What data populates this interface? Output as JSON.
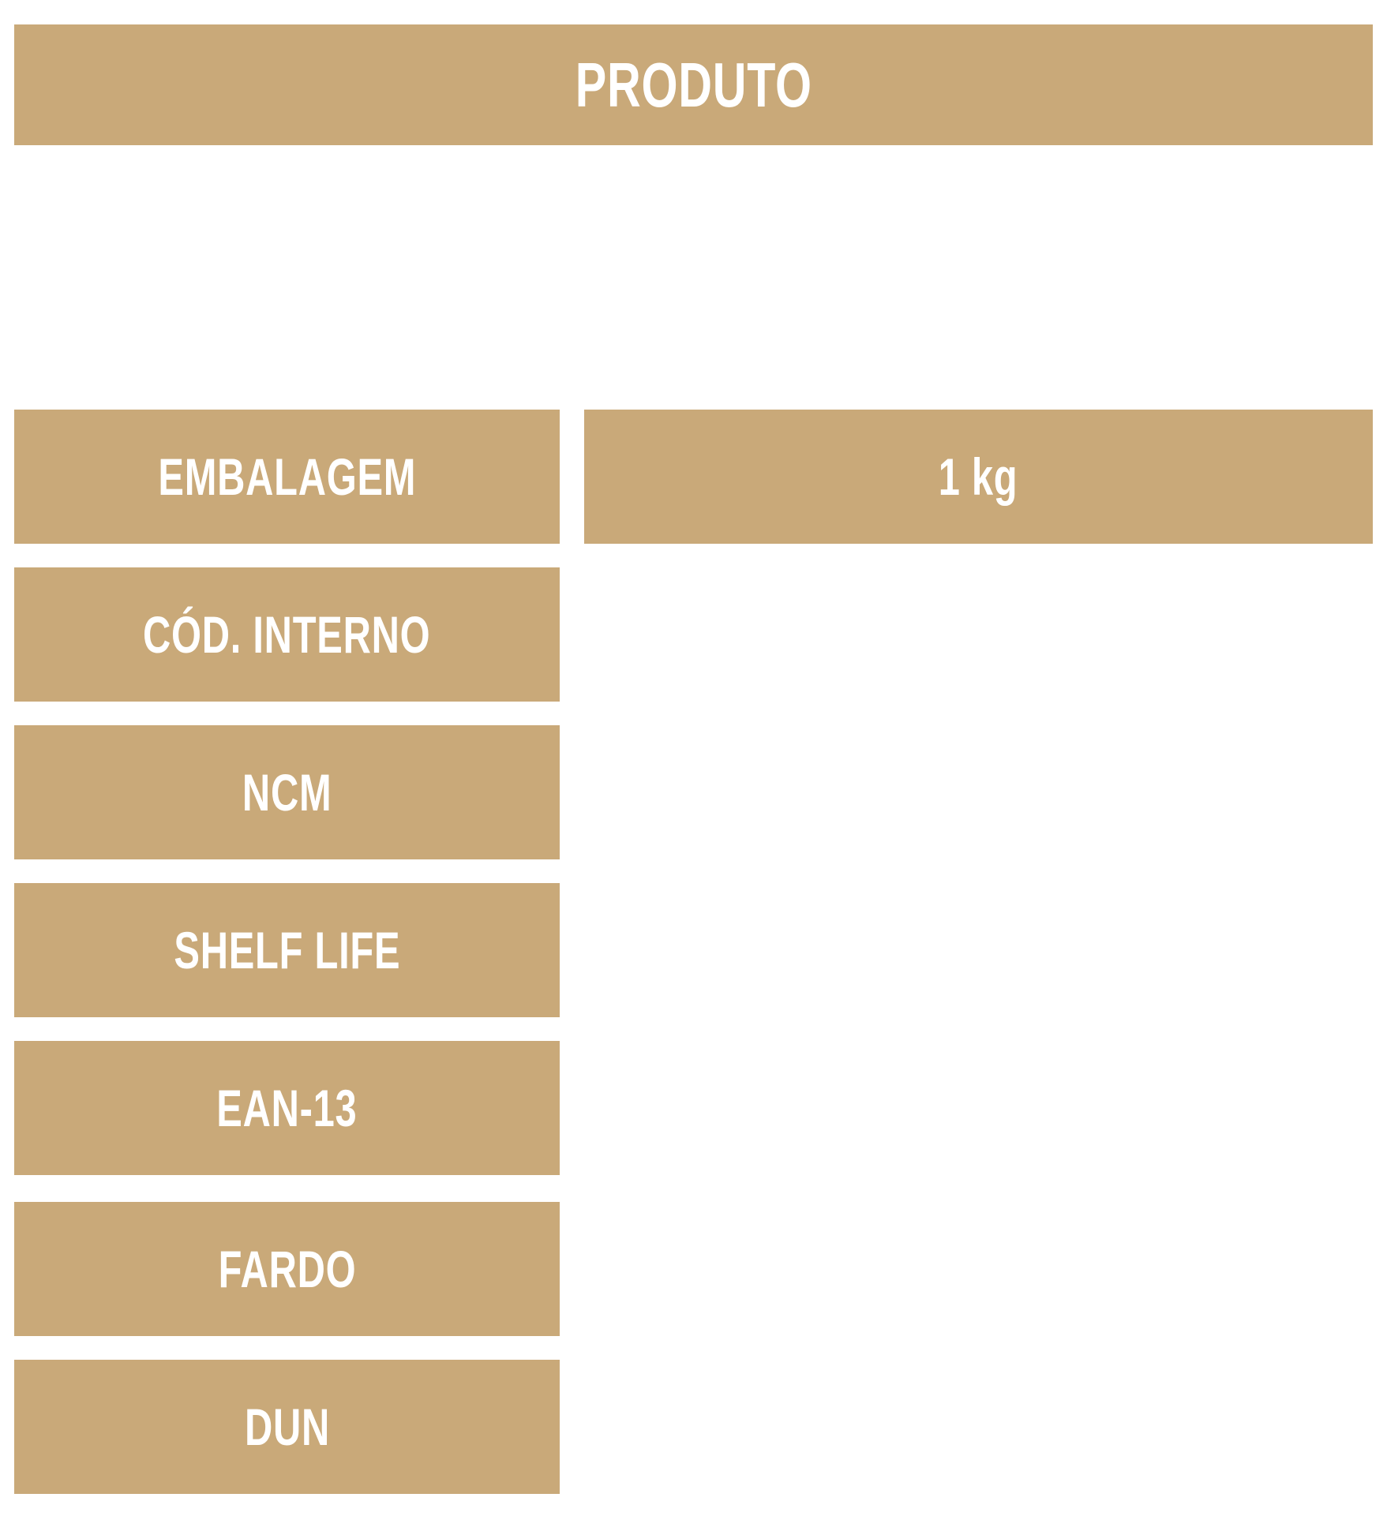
{
  "accent_color": "#c9a979",
  "header": {
    "title": "PRODUTO"
  },
  "rows": [
    {
      "label": "EMBALAGEM",
      "value": "1 kg"
    },
    {
      "label": "CÓD. INTERNO"
    },
    {
      "label": "NCM"
    },
    {
      "label": "SHELF LIFE"
    },
    {
      "label": "EAN-13"
    },
    {
      "label": "FARDO"
    },
    {
      "label": "DUN"
    }
  ]
}
